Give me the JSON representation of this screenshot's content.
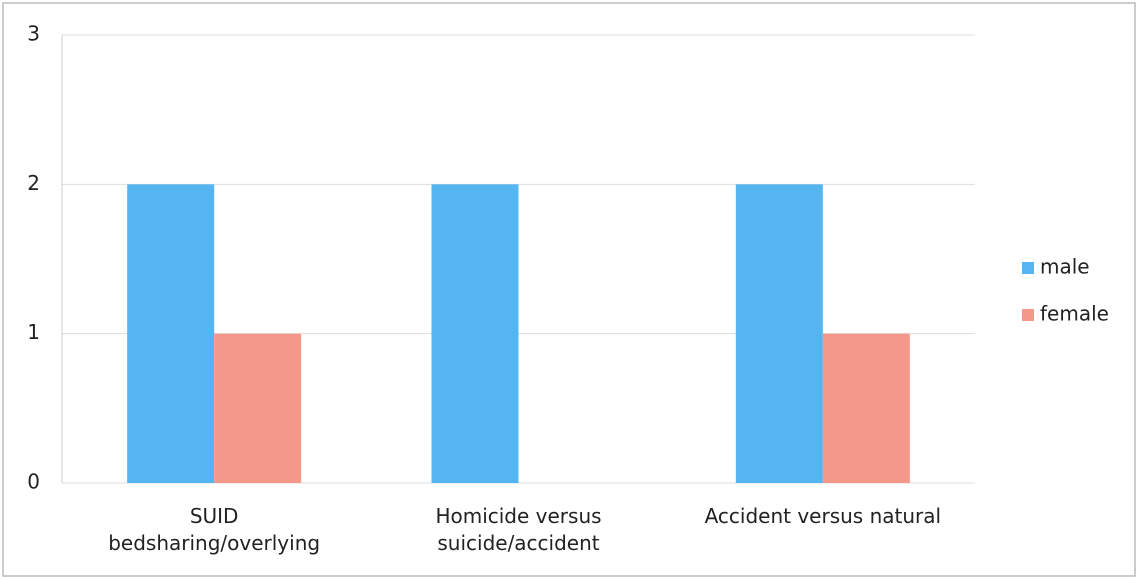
{
  "chart_data": {
    "type": "bar",
    "categories": [
      "SUID bedsharing/overlying",
      "Homicide versus suicide/accident",
      "Accident versus natural"
    ],
    "series": [
      {
        "name": "male",
        "color": "#55b5f0",
        "values": [
          2,
          2,
          2
        ]
      },
      {
        "name": "female",
        "color": "#f4988b",
        "values": [
          1,
          0,
          1
        ]
      }
    ],
    "ylim": [
      0,
      3
    ],
    "yticks": [
      0,
      1,
      2,
      3
    ],
    "grid": true,
    "legend": "right"
  }
}
